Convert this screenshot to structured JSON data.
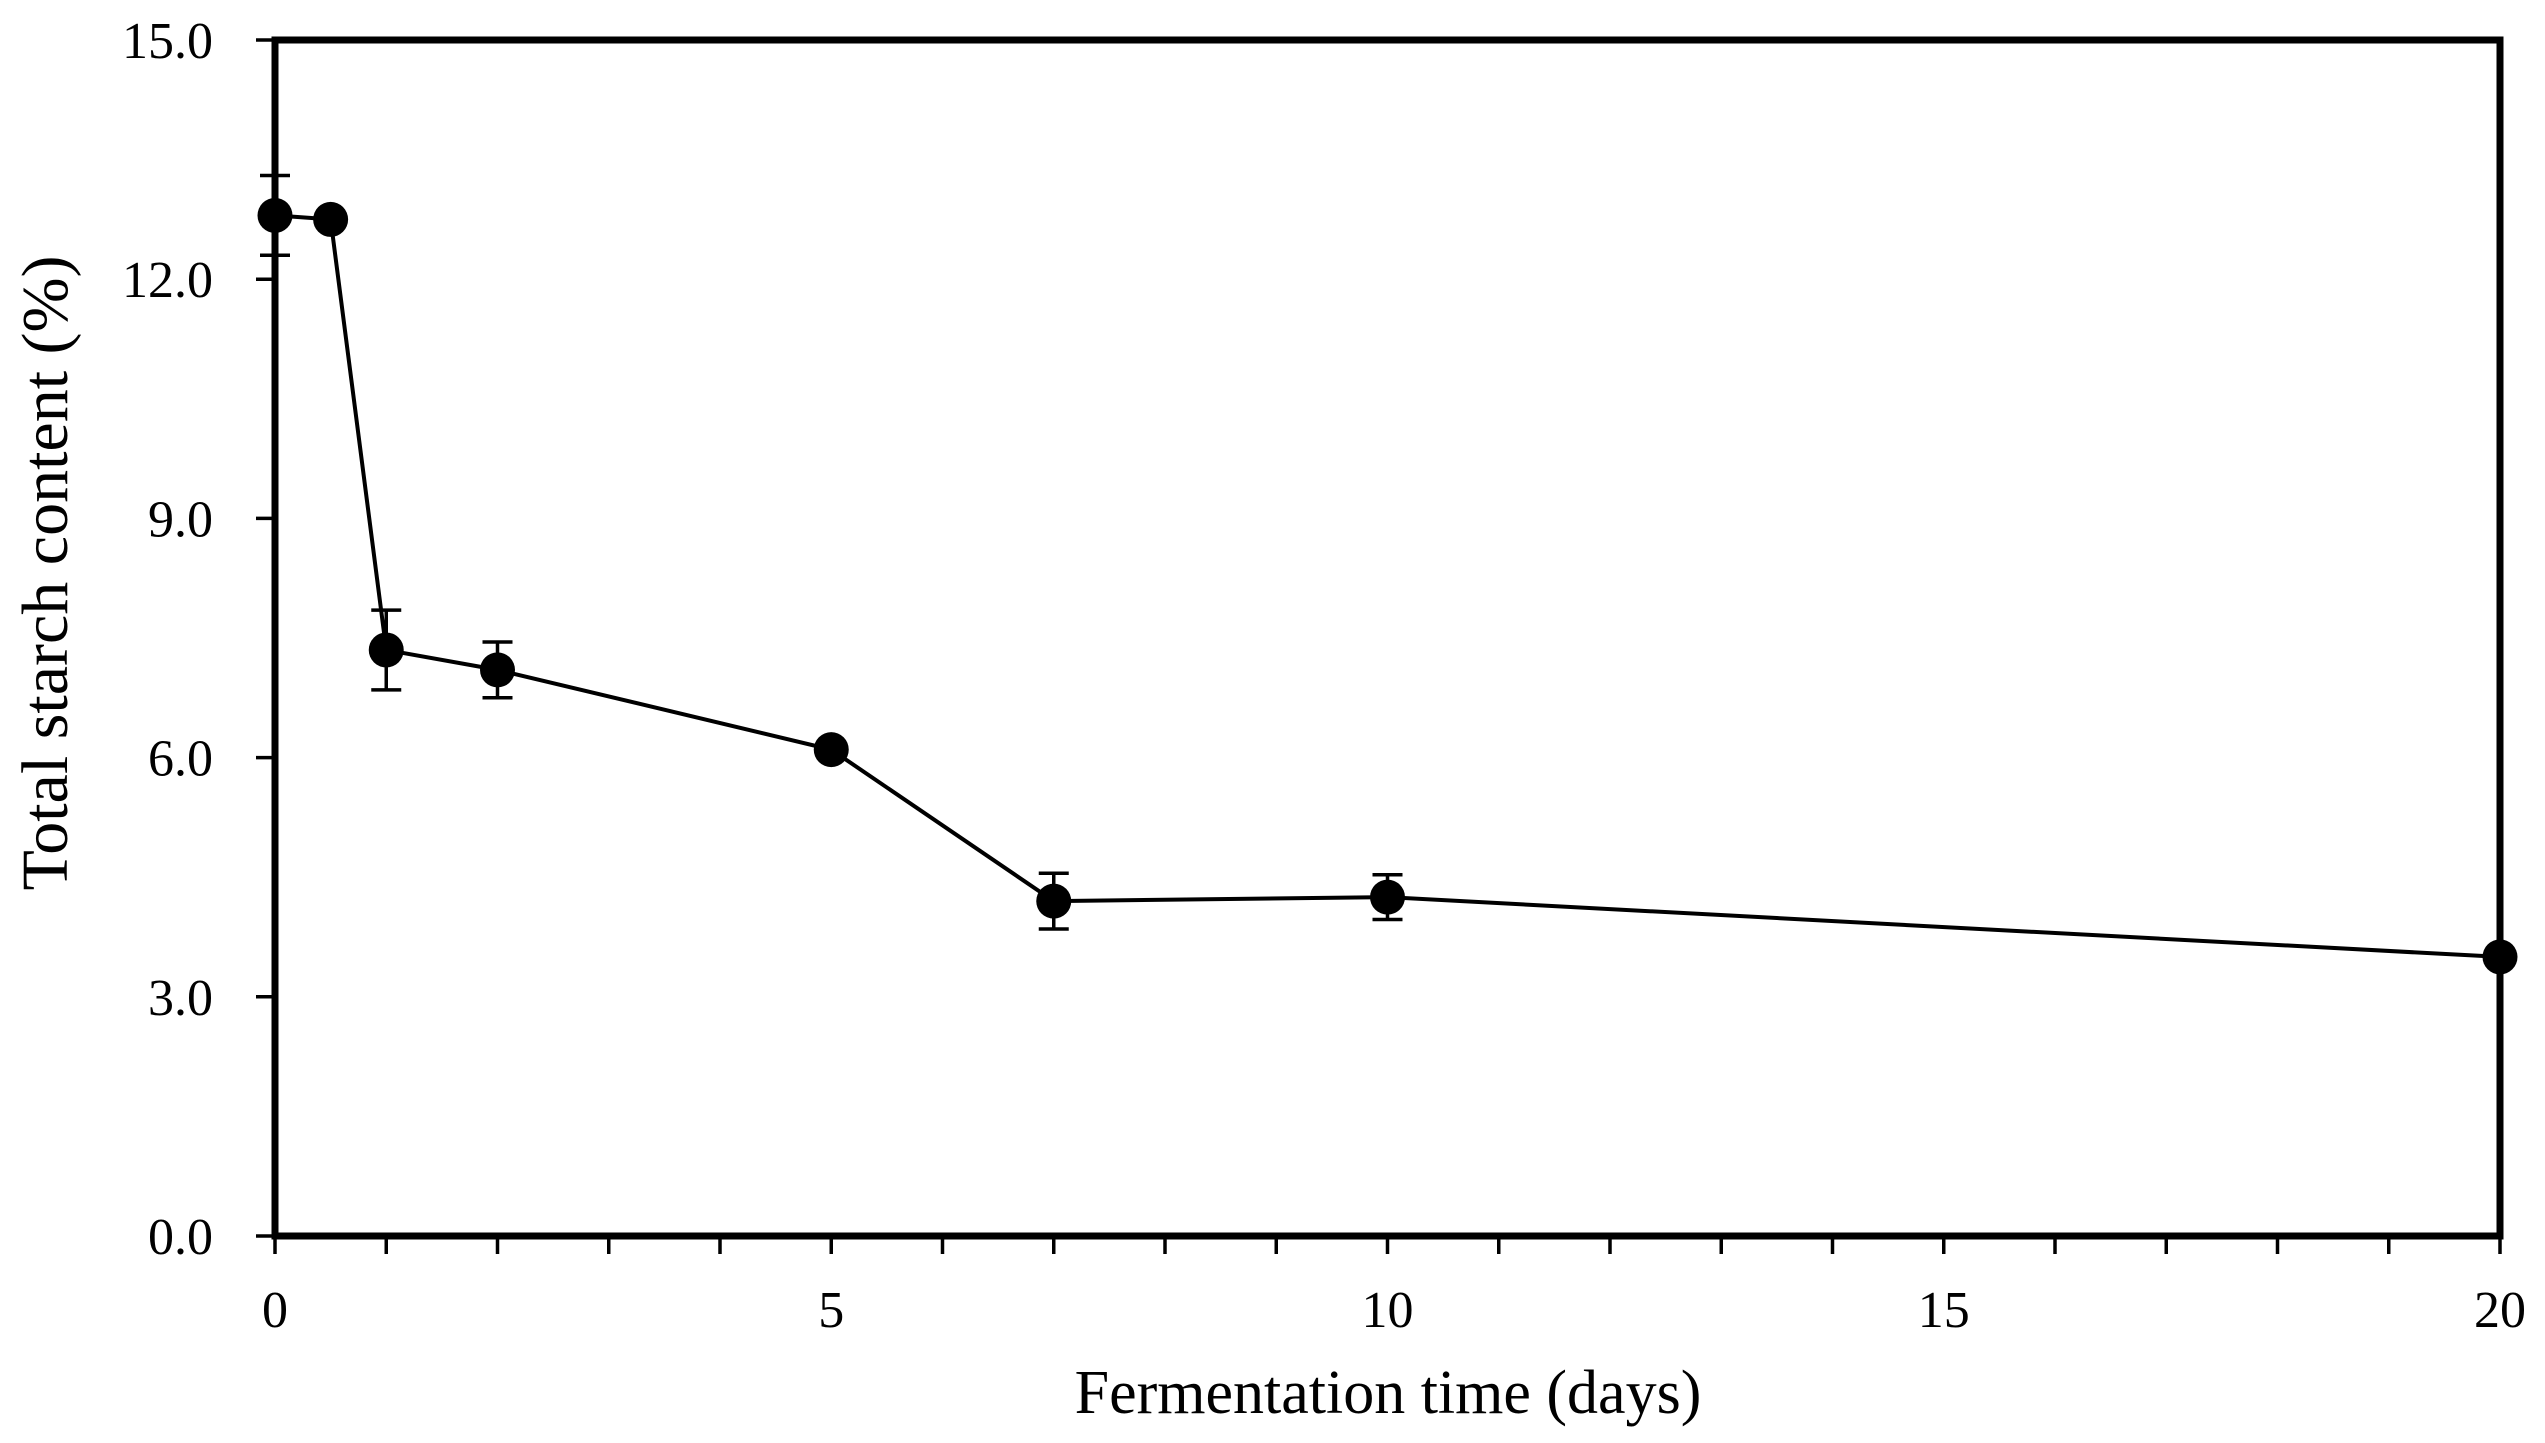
{
  "figure": {
    "background": "#ffffff",
    "ink_color": "#000000"
  },
  "chart_data": {
    "type": "line",
    "title": "",
    "xlabel": "Fermentation time (days)",
    "ylabel": "Total starch content (%)",
    "xlim": [
      0,
      20
    ],
    "ylim": [
      0.0,
      15.0
    ],
    "x_ticks": [
      0,
      5,
      10,
      15,
      20
    ],
    "x_tick_labels": [
      "0",
      "5",
      "10",
      "15",
      "20"
    ],
    "x_minor_tick_step": 1,
    "y_ticks": [
      0.0,
      3.0,
      6.0,
      9.0,
      12.0,
      15.0
    ],
    "y_tick_labels": [
      "0.0",
      "3.0",
      "6.0",
      "9.0",
      "12.0",
      "15.0"
    ],
    "grid": false,
    "legend": null,
    "marker": "filled-circle",
    "line_color": "#000000",
    "marker_color": "#000000",
    "series": [
      {
        "name": "Total starch content",
        "points": [
          {
            "x": 0,
            "y": 12.8,
            "yerr": 0.5
          },
          {
            "x": 0.5,
            "y": 12.75,
            "yerr": 0
          },
          {
            "x": 1,
            "y": 7.35,
            "yerr": 0.5
          },
          {
            "x": 2,
            "y": 7.1,
            "yerr": 0.35
          },
          {
            "x": 5,
            "y": 6.1,
            "yerr": 0
          },
          {
            "x": 7,
            "y": 4.2,
            "yerr": 0.35
          },
          {
            "x": 10,
            "y": 4.25,
            "yerr": 0.28
          },
          {
            "x": 20,
            "y": 3.5,
            "yerr": 0
          }
        ]
      }
    ]
  }
}
